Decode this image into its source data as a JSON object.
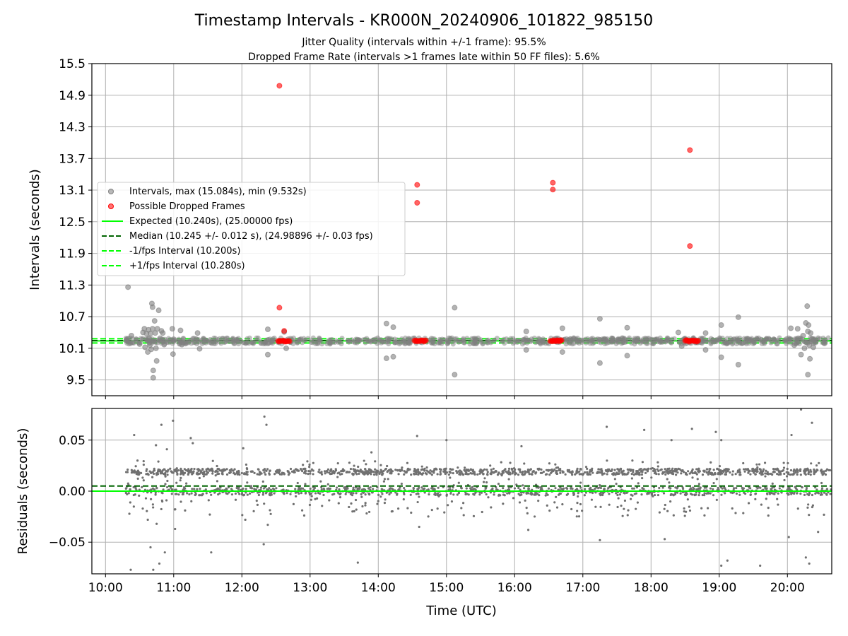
{
  "chart_data": [
    {
      "type": "scatter",
      "title": "Timestamp Intervals - KR000N_20240906_101822_985150",
      "subtitle_lines": [
        "Jitter Quality (intervals within +/-1 frame): 95.5%",
        "Dropped Frame Rate (intervals >1 frames late within 50 FF files): 5.6%"
      ],
      "xlabel": "",
      "ylabel": "Intervals (seconds)",
      "ylim": [
        9.2,
        15.5
      ],
      "yticks": [
        9.5,
        10.1,
        10.7,
        11.3,
        11.9,
        12.5,
        13.1,
        13.7,
        14.3,
        14.9,
        15.5
      ],
      "ytick_labels": [
        "9.5",
        "10.1",
        "10.7",
        "11.3",
        "11.9",
        "12.5",
        "13.1",
        "13.7",
        "14.3",
        "14.9",
        "15.5"
      ],
      "x_unit": "hours UTC",
      "xlim": [
        9.8,
        20.65
      ],
      "grid": true,
      "legend_position": "center-left",
      "legend": [
        {
          "label": "Intervals, max (15.084s), min (9.532s)",
          "marker": "dot",
          "color": "#808080"
        },
        {
          "label": "Possible Dropped Frames",
          "marker": "dot",
          "color": "#ff0000"
        },
        {
          "label": "Expected (10.240s), (25.00000 fps)",
          "marker": "solid",
          "color": "#00ff00"
        },
        {
          "label": "Median (10.245 +/- 0.012 s), (24.98896 +/- 0.03 fps)",
          "marker": "dashed",
          "color": "#006400"
        },
        {
          "label": "-1/fps Interval (10.200s)",
          "marker": "dashed",
          "color": "#00ff00"
        },
        {
          "label": "+1/fps Interval (10.280s)",
          "marker": "dashed",
          "color": "#00ff00"
        }
      ],
      "lines": {
        "expected": 10.24,
        "median": 10.245,
        "minus_fps": 10.2,
        "plus_fps": 10.28
      },
      "series": [
        {
          "name": "Intervals, max (15.084s), min (9.532s)",
          "color": "#808080",
          "points": [
            [
              10.33,
              11.26
            ],
            [
              10.38,
              10.34
            ],
            [
              10.5,
              10.18
            ],
            [
              10.55,
              10.4
            ],
            [
              10.57,
              10.47
            ],
            [
              10.58,
              10.12
            ],
            [
              10.6,
              10.38
            ],
            [
              10.62,
              10.03
            ],
            [
              10.63,
              10.45
            ],
            [
              10.64,
              10.29
            ],
            [
              10.65,
              10.16
            ],
            [
              10.66,
              10.38
            ],
            [
              10.67,
              10.08
            ],
            [
              10.68,
              10.95
            ],
            [
              10.69,
              10.88
            ],
            [
              10.69,
              10.47
            ],
            [
              10.7,
              9.68
            ],
            [
              10.7,
              9.54
            ],
            [
              10.71,
              10.23
            ],
            [
              10.72,
              10.62
            ],
            [
              10.73,
              10.39
            ],
            [
              10.74,
              10.1
            ],
            [
              10.75,
              9.86
            ],
            [
              10.76,
              10.47
            ],
            [
              10.78,
              10.82
            ],
            [
              10.8,
              10.29
            ],
            [
              10.82,
              10.43
            ],
            [
              10.84,
              10.39
            ],
            [
              10.86,
              10.17
            ],
            [
              10.98,
              10.47
            ],
            [
              10.99,
              9.99
            ],
            [
              11.1,
              10.44
            ],
            [
              11.12,
              10.17
            ],
            [
              11.35,
              10.39
            ],
            [
              11.38,
              10.09
            ],
            [
              12.38,
              10.46
            ],
            [
              12.38,
              9.98
            ],
            [
              12.62,
              10.41
            ],
            [
              12.65,
              10.1
            ],
            [
              14.12,
              10.57
            ],
            [
              14.12,
              9.91
            ],
            [
              14.22,
              10.5
            ],
            [
              14.22,
              9.94
            ],
            [
              15.12,
              10.87
            ],
            [
              15.12,
              9.6
            ],
            [
              16.17,
              10.42
            ],
            [
              16.17,
              10.07
            ],
            [
              16.7,
              10.48
            ],
            [
              16.7,
              10.03
            ],
            [
              17.25,
              10.66
            ],
            [
              17.25,
              9.82
            ],
            [
              17.65,
              10.49
            ],
            [
              17.65,
              9.96
            ],
            [
              18.4,
              10.4
            ],
            [
              18.45,
              10.14
            ],
            [
              18.8,
              10.39
            ],
            [
              18.8,
              10.07
            ],
            [
              19.03,
              10.54
            ],
            [
              19.03,
              9.93
            ],
            [
              19.28,
              10.69
            ],
            [
              19.28,
              9.79
            ],
            [
              20.05,
              10.48
            ],
            [
              20.1,
              10.16
            ],
            [
              20.15,
              10.47
            ],
            [
              20.2,
              9.98
            ],
            [
              20.23,
              10.34
            ],
            [
              20.25,
              10.1
            ],
            [
              20.27,
              10.58
            ],
            [
              20.28,
              10.21
            ],
            [
              20.29,
              10.9
            ],
            [
              20.3,
              10.42
            ],
            [
              20.3,
              9.6
            ],
            [
              20.31,
              10.54
            ],
            [
              20.32,
              10.16
            ],
            [
              20.33,
              9.9
            ],
            [
              20.34,
              10.39
            ],
            [
              20.36,
              10.28
            ],
            [
              20.38,
              10.12
            ]
          ],
          "band": {
            "x_from": 10.3,
            "x_to": 20.6,
            "y_low": 10.18,
            "y_high": 10.3
          }
        },
        {
          "name": "Possible Dropped Frames",
          "color": "#ff0000",
          "points": [
            [
              12.55,
              15.08
            ],
            [
              12.55,
              10.87
            ],
            [
              12.62,
              10.43
            ],
            [
              14.57,
              13.2
            ],
            [
              14.57,
              12.86
            ],
            [
              16.56,
              13.24
            ],
            [
              16.56,
              13.11
            ],
            [
              18.57,
              13.86
            ],
            [
              18.57,
              12.04
            ]
          ],
          "clusters": [
            [
              12.53,
              12.7
            ],
            [
              14.53,
              14.7
            ],
            [
              16.52,
              16.7
            ],
            [
              18.5,
              18.7
            ]
          ],
          "cluster_y": 10.24
        }
      ]
    },
    {
      "type": "scatter",
      "title": "",
      "xlabel": "Time (UTC)",
      "ylabel": "Residuals (seconds)",
      "ylim": [
        -0.081,
        0.081
      ],
      "yticks": [
        -0.05,
        0.0,
        0.05
      ],
      "ytick_labels": [
        "−0.05",
        "0.00",
        "0.05"
      ],
      "xlim": [
        9.8,
        20.65
      ],
      "xticks": [
        10,
        11,
        12,
        13,
        14,
        15,
        16,
        17,
        18,
        19,
        20
      ],
      "xtick_labels": [
        "10:00",
        "11:00",
        "12:00",
        "13:00",
        "14:00",
        "15:00",
        "16:00",
        "17:00",
        "18:00",
        "19:00",
        "20:00"
      ],
      "grid": true,
      "lines": {
        "zero": 0.0,
        "median_offset": 0.005
      },
      "series": [
        {
          "name": "",
          "color": "#808080",
          "x_range": [
            10.3,
            20.65
          ],
          "bands": [
            [
              0.016,
              0.022
            ],
            [
              -0.004,
              0.004
            ]
          ],
          "outliers": [
            [
              10.37,
              -0.077
            ],
            [
              10.42,
              0.055
            ],
            [
              10.62,
              -0.028
            ],
            [
              10.66,
              -0.055
            ],
            [
              10.7,
              -0.077
            ],
            [
              10.74,
              0.045
            ],
            [
              10.75,
              -0.032
            ],
            [
              10.79,
              -0.071
            ],
            [
              10.82,
              0.065
            ],
            [
              10.87,
              -0.06
            ],
            [
              10.9,
              0.041
            ],
            [
              10.99,
              0.069
            ],
            [
              11.02,
              -0.037
            ],
            [
              11.25,
              0.052
            ],
            [
              11.28,
              0.047
            ],
            [
              11.55,
              -0.06
            ],
            [
              12.02,
              0.042
            ],
            [
              12.05,
              -0.028
            ],
            [
              12.33,
              0.073
            ],
            [
              12.36,
              0.065
            ],
            [
              12.32,
              -0.052
            ],
            [
              12.38,
              -0.033
            ],
            [
              13.7,
              -0.07
            ],
            [
              13.9,
              0.038
            ],
            [
              14.57,
              0.054
            ],
            [
              14.6,
              -0.035
            ],
            [
              15.0,
              0.05
            ],
            [
              16.1,
              0.044
            ],
            [
              16.2,
              -0.038
            ],
            [
              17.35,
              0.063
            ],
            [
              17.25,
              -0.048
            ],
            [
              17.9,
              0.06
            ],
            [
              18.2,
              -0.047
            ],
            [
              18.3,
              0.05
            ],
            [
              18.6,
              0.061
            ],
            [
              18.95,
              0.058
            ],
            [
              19.03,
              -0.073
            ],
            [
              19.03,
              0.05
            ],
            [
              19.12,
              -0.068
            ],
            [
              19.6,
              -0.073
            ],
            [
              20.02,
              -0.045
            ],
            [
              20.06,
              0.055
            ],
            [
              20.2,
              0.08
            ],
            [
              20.27,
              -0.065
            ],
            [
              20.32,
              -0.071
            ],
            [
              20.36,
              0.067
            ],
            [
              20.45,
              -0.04
            ]
          ]
        }
      ]
    }
  ]
}
